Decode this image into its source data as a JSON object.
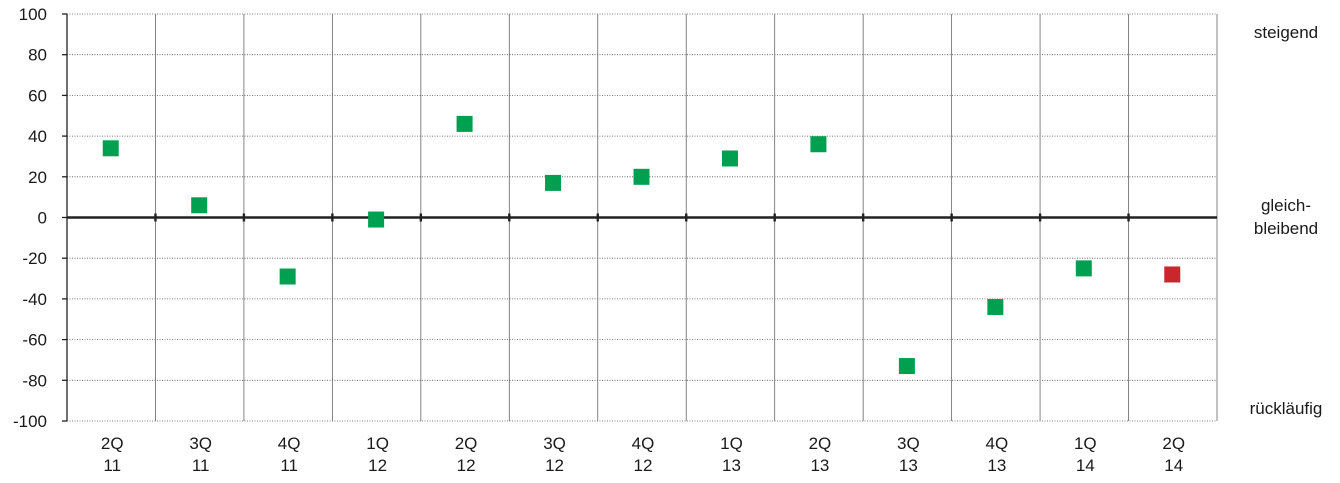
{
  "chart_data": {
    "type": "scatter",
    "categories": [
      [
        "2Q",
        "11"
      ],
      [
        "3Q",
        "11"
      ],
      [
        "4Q",
        "11"
      ],
      [
        "1Q",
        "12"
      ],
      [
        "2Q",
        "12"
      ],
      [
        "3Q",
        "12"
      ],
      [
        "4Q",
        "12"
      ],
      [
        "1Q",
        "13"
      ],
      [
        "2Q",
        "13"
      ],
      [
        "3Q",
        "13"
      ],
      [
        "4Q",
        "13"
      ],
      [
        "1Q",
        "14"
      ],
      [
        "2Q",
        "14"
      ]
    ],
    "values": [
      34,
      6,
      -29,
      -1,
      46,
      17,
      20,
      29,
      36,
      -73,
      -44,
      -25,
      -28
    ],
    "point_colors": [
      "#00a050",
      "#00a050",
      "#00a050",
      "#00a050",
      "#00a050",
      "#00a050",
      "#00a050",
      "#00a050",
      "#00a050",
      "#00a050",
      "#00a050",
      "#00a050",
      "#c8282d"
    ],
    "ylim": [
      -100,
      100
    ],
    "yticks": [
      "100",
      "80",
      "60",
      "40",
      "20",
      "0",
      "-20",
      "-40",
      "-60",
      "-80",
      "-100"
    ],
    "side_labels": {
      "top": "steigend",
      "middle_line1": "gleich-",
      "middle_line2": "bleibend",
      "bottom": "rückläufig"
    },
    "grid": true,
    "title": "",
    "xlabel": "",
    "ylabel": ""
  }
}
